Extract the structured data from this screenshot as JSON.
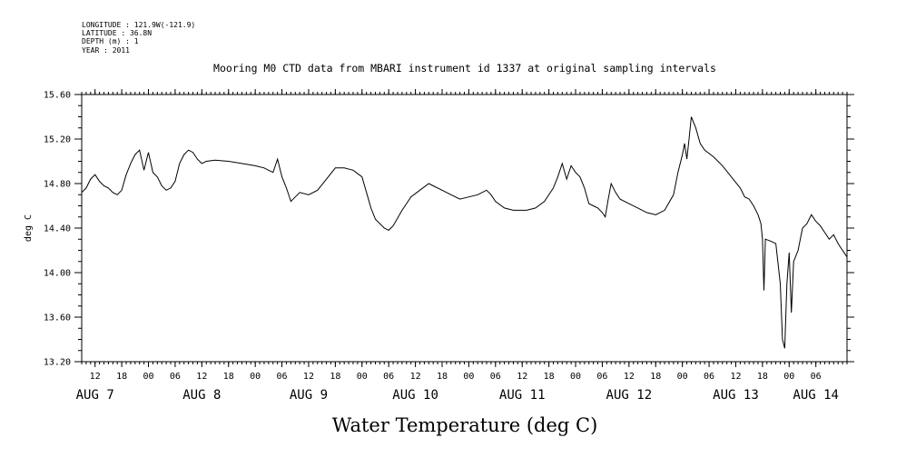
{
  "header": {
    "longitude": "LONGITUDE : 121.9W(-121.9)",
    "latitude": "LATITUDE : 36.8N",
    "depth": "DEPTH (m) : 1",
    "year": "YEAR : 2011"
  },
  "chart_data": {
    "type": "line",
    "title": "Mooring M0 CTD data from MBARI instrument id 1337 at original sampling intervals",
    "ylabel": "deg C",
    "bottom_label": "Water Temperature (deg C)",
    "xlim": [
      "2011-08-07T09:00",
      "2011-08-14T13:00"
    ],
    "ylim": [
      13.2,
      15.6
    ],
    "y_ticks": [
      "13.20",
      "13.60",
      "14.00",
      "14.40",
      "14.80",
      "15.20",
      "15.60"
    ],
    "x_hour_ticks": [
      {
        "t": "2011-08-07T12:00",
        "label": "12"
      },
      {
        "t": "2011-08-07T18:00",
        "label": "18"
      },
      {
        "t": "2011-08-08T00:00",
        "label": "00"
      },
      {
        "t": "2011-08-08T06:00",
        "label": "06"
      },
      {
        "t": "2011-08-08T12:00",
        "label": "12"
      },
      {
        "t": "2011-08-08T18:00",
        "label": "18"
      },
      {
        "t": "2011-08-09T00:00",
        "label": "00"
      },
      {
        "t": "2011-08-09T06:00",
        "label": "06"
      },
      {
        "t": "2011-08-09T12:00",
        "label": "12"
      },
      {
        "t": "2011-08-09T18:00",
        "label": "18"
      },
      {
        "t": "2011-08-10T00:00",
        "label": "00"
      },
      {
        "t": "2011-08-10T06:00",
        "label": "06"
      },
      {
        "t": "2011-08-10T12:00",
        "label": "12"
      },
      {
        "t": "2011-08-10T18:00",
        "label": "18"
      },
      {
        "t": "2011-08-11T00:00",
        "label": "00"
      },
      {
        "t": "2011-08-11T06:00",
        "label": "06"
      },
      {
        "t": "2011-08-11T12:00",
        "label": "12"
      },
      {
        "t": "2011-08-11T18:00",
        "label": "18"
      },
      {
        "t": "2011-08-12T00:00",
        "label": "00"
      },
      {
        "t": "2011-08-12T06:00",
        "label": "06"
      },
      {
        "t": "2011-08-12T12:00",
        "label": "12"
      },
      {
        "t": "2011-08-12T18:00",
        "label": "18"
      },
      {
        "t": "2011-08-13T00:00",
        "label": "00"
      },
      {
        "t": "2011-08-13T06:00",
        "label": "06"
      },
      {
        "t": "2011-08-13T12:00",
        "label": "12"
      },
      {
        "t": "2011-08-13T18:00",
        "label": "18"
      },
      {
        "t": "2011-08-14T00:00",
        "label": "00"
      },
      {
        "t": "2011-08-14T06:00",
        "label": "06"
      }
    ],
    "x_day_labels": [
      {
        "t": "2011-08-07T12:00",
        "label": "AUG  7"
      },
      {
        "t": "2011-08-08T12:00",
        "label": "AUG  8"
      },
      {
        "t": "2011-08-09T12:00",
        "label": "AUG  9"
      },
      {
        "t": "2011-08-10T12:00",
        "label": "AUG 10"
      },
      {
        "t": "2011-08-11T12:00",
        "label": "AUG 11"
      },
      {
        "t": "2011-08-12T12:00",
        "label": "AUG 12"
      },
      {
        "t": "2011-08-13T12:00",
        "label": "AUG 13"
      },
      {
        "t": "2011-08-14T06:00",
        "label": "AUG 14"
      }
    ],
    "series": [
      {
        "points": [
          [
            "2011-08-07T09:00",
            14.72
          ],
          [
            "2011-08-07T10:00",
            14.76
          ],
          [
            "2011-08-07T11:00",
            14.84
          ],
          [
            "2011-08-07T12:00",
            14.88
          ],
          [
            "2011-08-07T13:00",
            14.82
          ],
          [
            "2011-08-07T14:00",
            14.78
          ],
          [
            "2011-08-07T15:00",
            14.76
          ],
          [
            "2011-08-07T16:00",
            14.72
          ],
          [
            "2011-08-07T17:00",
            14.7
          ],
          [
            "2011-08-07T18:00",
            14.74
          ],
          [
            "2011-08-07T19:00",
            14.88
          ],
          [
            "2011-08-07T20:00",
            14.98
          ],
          [
            "2011-08-07T21:00",
            15.06
          ],
          [
            "2011-08-07T22:00",
            15.1
          ],
          [
            "2011-08-07T23:00",
            14.92
          ],
          [
            "2011-08-08T00:00",
            15.08
          ],
          [
            "2011-08-08T01:00",
            14.9
          ],
          [
            "2011-08-08T02:00",
            14.86
          ],
          [
            "2011-08-08T03:00",
            14.78
          ],
          [
            "2011-08-08T04:00",
            14.74
          ],
          [
            "2011-08-08T05:00",
            14.76
          ],
          [
            "2011-08-08T06:00",
            14.82
          ],
          [
            "2011-08-08T07:00",
            14.98
          ],
          [
            "2011-08-08T08:00",
            15.06
          ],
          [
            "2011-08-08T09:00",
            15.1
          ],
          [
            "2011-08-08T10:00",
            15.08
          ],
          [
            "2011-08-08T11:00",
            15.02
          ],
          [
            "2011-08-08T12:00",
            14.98
          ],
          [
            "2011-08-08T13:00",
            15.0
          ],
          [
            "2011-08-08T15:00",
            15.01
          ],
          [
            "2011-08-08T18:00",
            15.0
          ],
          [
            "2011-08-08T21:00",
            14.98
          ],
          [
            "2011-08-09T00:00",
            14.96
          ],
          [
            "2011-08-09T02:00",
            14.94
          ],
          [
            "2011-08-09T03:00",
            14.92
          ],
          [
            "2011-08-09T04:00",
            14.9
          ],
          [
            "2011-08-09T05:00",
            15.02
          ],
          [
            "2011-08-09T06:00",
            14.86
          ],
          [
            "2011-08-09T07:00",
            14.76
          ],
          [
            "2011-08-09T08:00",
            14.64
          ],
          [
            "2011-08-09T09:00",
            14.68
          ],
          [
            "2011-08-09T10:00",
            14.72
          ],
          [
            "2011-08-09T12:00",
            14.7
          ],
          [
            "2011-08-09T14:00",
            14.74
          ],
          [
            "2011-08-09T16:00",
            14.84
          ],
          [
            "2011-08-09T18:00",
            14.94
          ],
          [
            "2011-08-09T20:00",
            14.94
          ],
          [
            "2011-08-09T22:00",
            14.92
          ],
          [
            "2011-08-10T00:00",
            14.86
          ],
          [
            "2011-08-10T01:00",
            14.72
          ],
          [
            "2011-08-10T02:00",
            14.58
          ],
          [
            "2011-08-10T03:00",
            14.48
          ],
          [
            "2011-08-10T05:00",
            14.4
          ],
          [
            "2011-08-10T06:00",
            14.38
          ],
          [
            "2011-08-10T07:00",
            14.42
          ],
          [
            "2011-08-10T09:00",
            14.56
          ],
          [
            "2011-08-10T11:00",
            14.68
          ],
          [
            "2011-08-10T13:00",
            14.74
          ],
          [
            "2011-08-10T15:00",
            14.8
          ],
          [
            "2011-08-10T16:00",
            14.78
          ],
          [
            "2011-08-10T18:00",
            14.74
          ],
          [
            "2011-08-10T20:00",
            14.7
          ],
          [
            "2011-08-10T22:00",
            14.66
          ],
          [
            "2011-08-11T00:00",
            14.68
          ],
          [
            "2011-08-11T02:00",
            14.7
          ],
          [
            "2011-08-11T04:00",
            14.74
          ],
          [
            "2011-08-11T05:00",
            14.7
          ],
          [
            "2011-08-11T06:00",
            14.64
          ],
          [
            "2011-08-11T08:00",
            14.58
          ],
          [
            "2011-08-11T10:00",
            14.56
          ],
          [
            "2011-08-11T13:00",
            14.56
          ],
          [
            "2011-08-11T15:00",
            14.58
          ],
          [
            "2011-08-11T17:00",
            14.64
          ],
          [
            "2011-08-11T19:00",
            14.76
          ],
          [
            "2011-08-11T20:00",
            14.86
          ],
          [
            "2011-08-11T21:00",
            14.98
          ],
          [
            "2011-08-11T22:00",
            14.84
          ],
          [
            "2011-08-11T23:00",
            14.96
          ],
          [
            "2011-08-12T00:00",
            14.9
          ],
          [
            "2011-08-12T01:00",
            14.86
          ],
          [
            "2011-08-12T02:00",
            14.76
          ],
          [
            "2011-08-12T03:00",
            14.62
          ],
          [
            "2011-08-12T04:00",
            14.6
          ],
          [
            "2011-08-12T05:00",
            14.58
          ],
          [
            "2011-08-12T06:00",
            14.54
          ],
          [
            "2011-08-12T06:40",
            14.5
          ],
          [
            "2011-08-12T07:20",
            14.66
          ],
          [
            "2011-08-12T08:00",
            14.8
          ],
          [
            "2011-08-12T09:00",
            14.72
          ],
          [
            "2011-08-12T10:00",
            14.66
          ],
          [
            "2011-08-12T12:00",
            14.62
          ],
          [
            "2011-08-12T14:00",
            14.58
          ],
          [
            "2011-08-12T16:00",
            14.54
          ],
          [
            "2011-08-12T18:00",
            14.52
          ],
          [
            "2011-08-12T20:00",
            14.56
          ],
          [
            "2011-08-12T22:00",
            14.7
          ],
          [
            "2011-08-12T23:00",
            14.9
          ],
          [
            "2011-08-13T00:00",
            15.06
          ],
          [
            "2011-08-13T00:30",
            15.16
          ],
          [
            "2011-08-13T01:00",
            15.02
          ],
          [
            "2011-08-13T01:30",
            15.2
          ],
          [
            "2011-08-13T02:00",
            15.4
          ],
          [
            "2011-08-13T03:00",
            15.3
          ],
          [
            "2011-08-13T04:00",
            15.16
          ],
          [
            "2011-08-13T05:00",
            15.1
          ],
          [
            "2011-08-13T07:00",
            15.04
          ],
          [
            "2011-08-13T09:00",
            14.96
          ],
          [
            "2011-08-13T11:00",
            14.86
          ],
          [
            "2011-08-13T13:00",
            14.76
          ],
          [
            "2011-08-13T14:00",
            14.68
          ],
          [
            "2011-08-13T15:00",
            14.66
          ],
          [
            "2011-08-13T16:00",
            14.6
          ],
          [
            "2011-08-13T17:00",
            14.52
          ],
          [
            "2011-08-13T17:40",
            14.44
          ],
          [
            "2011-08-13T18:00",
            14.3
          ],
          [
            "2011-08-13T18:20",
            13.84
          ],
          [
            "2011-08-13T18:40",
            14.3
          ],
          [
            "2011-08-13T20:00",
            14.28
          ],
          [
            "2011-08-13T21:00",
            14.26
          ],
          [
            "2011-08-13T22:00",
            13.9
          ],
          [
            "2011-08-13T22:30",
            13.4
          ],
          [
            "2011-08-13T23:00",
            13.32
          ],
          [
            "2011-08-13T23:30",
            13.9
          ],
          [
            "2011-08-14T00:00",
            14.18
          ],
          [
            "2011-08-14T00:30",
            13.64
          ],
          [
            "2011-08-14T01:00",
            14.1
          ],
          [
            "2011-08-14T02:00",
            14.2
          ],
          [
            "2011-08-14T03:00",
            14.4
          ],
          [
            "2011-08-14T04:00",
            14.44
          ],
          [
            "2011-08-14T05:00",
            14.52
          ],
          [
            "2011-08-14T06:00",
            14.46
          ],
          [
            "2011-08-14T07:00",
            14.42
          ],
          [
            "2011-08-14T08:00",
            14.36
          ],
          [
            "2011-08-14T09:00",
            14.3
          ],
          [
            "2011-08-14T10:00",
            14.34
          ],
          [
            "2011-08-14T11:00",
            14.26
          ],
          [
            "2011-08-14T12:00",
            14.2
          ],
          [
            "2011-08-14T13:00",
            14.14
          ]
        ]
      }
    ]
  }
}
